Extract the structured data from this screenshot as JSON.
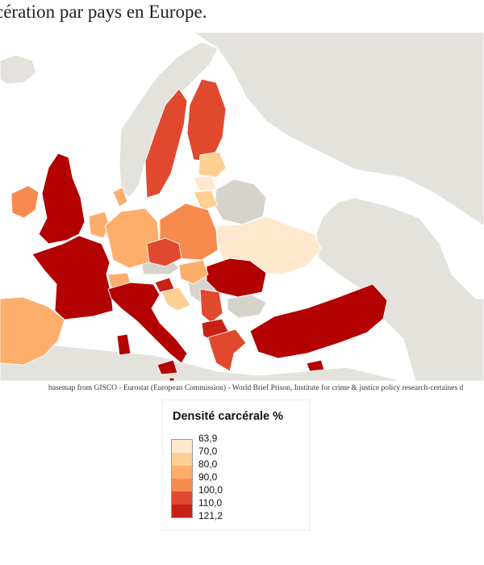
{
  "title": "cération par pays en Europe.",
  "source": "basemap from GISCO - Eurostat (European Commission) - World Brief Prison, Institute for crime & justice policy research-certaines d",
  "legend": {
    "title": "Densité carcérale %",
    "breaks": [
      "63,9",
      "70,0",
      "80,0",
      "90,0",
      "100,0",
      "110,0",
      "121,2"
    ],
    "colors": [
      "#fee9cf",
      "#fdcf93",
      "#fdae6b",
      "#f88a4e",
      "#e0492e",
      "#c72015",
      "#b30000"
    ]
  },
  "colors": {
    "no_data": "#d6d3cd",
    "background_land": "#e4e2dc",
    "sea": "#ffffff"
  }
}
